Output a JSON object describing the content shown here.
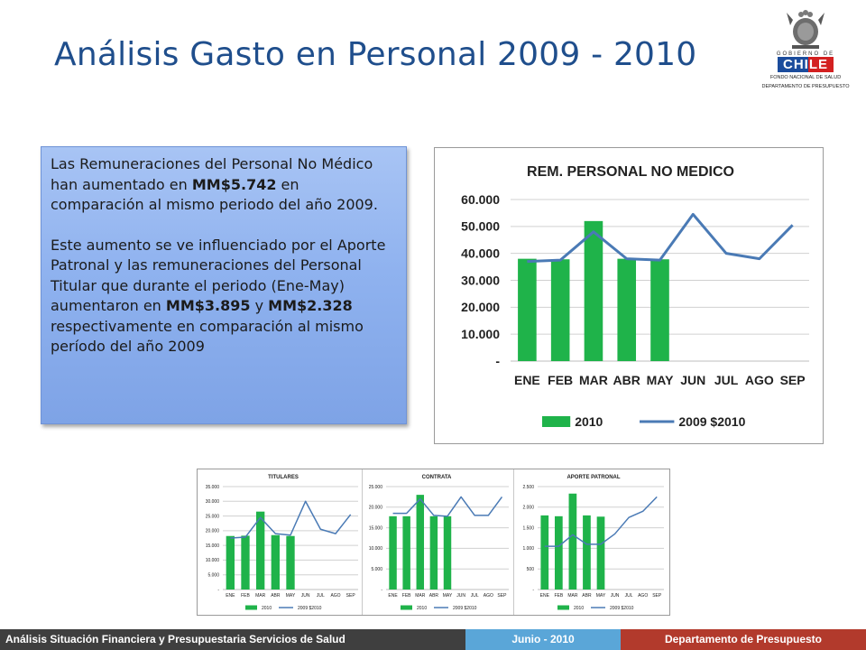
{
  "header": {
    "title": "Análisis Gasto en Personal 2009 - 2010",
    "logo_gobierno": "GOBIERNO DE",
    "logo_chile": "CHILE",
    "logo_line1": "FONDO NACIONAL DE SALUD",
    "logo_line2": "DEPARTAMENTO DE PRESUPUESTO"
  },
  "infobox": {
    "p1_a": "Las Remuneraciones del Personal No Médico han aumentado en ",
    "p1_b": "MM$5.742",
    "p1_c": " en comparación al mismo periodo del año 2009.",
    "p2_a": "Este aumento se ve influenciado por el Aporte Patronal y las remuneraciones del Personal Titular que durante el periodo (Ene-May) aumentaron en ",
    "p2_b": "MM$3.895",
    "p2_c": " y ",
    "p2_d": "MM$2.328",
    "p2_e": " respectivamente en comparación al mismo período del año 2009"
  },
  "colors": {
    "bar": "#1fb34a",
    "line": "#4a7ab5",
    "grid": "#d0d0d0"
  },
  "chart_data": [
    {
      "type": "bar",
      "title": "REM. PERSONAL NO MEDICO",
      "categories": [
        "ENE",
        "FEB",
        "MAR",
        "ABR",
        "MAY",
        "JUN",
        "JUL",
        "AGO",
        "SEP"
      ],
      "yticks": [
        "-",
        "10.000",
        "20.000",
        "30.000",
        "40.000",
        "50.000",
        "60.000"
      ],
      "ylim": [
        0,
        60000
      ],
      "series": [
        {
          "name": "2010",
          "kind": "bar",
          "values": [
            38000,
            37800,
            52000,
            38000,
            37800,
            null,
            null,
            null,
            null
          ]
        },
        {
          "name": "2009 $2010",
          "kind": "line",
          "values": [
            37000,
            37500,
            48000,
            38000,
            37500,
            54500,
            40000,
            38000,
            50500
          ]
        }
      ],
      "legend": "bottom"
    },
    {
      "type": "bar",
      "title": "TITULARES",
      "categories": [
        "ENE",
        "FEB",
        "MAR",
        "ABR",
        "MAY",
        "JUN",
        "JUL",
        "AGO",
        "SEP"
      ],
      "yticks": [
        "-",
        "5.000",
        "10.000",
        "15.000",
        "20.000",
        "25.000",
        "30.000",
        "35.000"
      ],
      "ylim": [
        0,
        35000
      ],
      "series": [
        {
          "name": "2010",
          "kind": "bar",
          "values": [
            18200,
            18300,
            26500,
            18500,
            18200,
            null,
            null,
            null,
            null
          ]
        },
        {
          "name": "2009 $2010",
          "kind": "line",
          "values": [
            17500,
            17800,
            24500,
            19000,
            18500,
            30000,
            20500,
            19000,
            25500
          ]
        }
      ],
      "legend": "bottom"
    },
    {
      "type": "bar",
      "title": "CONTRATA",
      "categories": [
        "ENE",
        "FEB",
        "MAR",
        "ABR",
        "MAY",
        "JUN",
        "JUL",
        "AGO",
        "SEP"
      ],
      "yticks": [
        "-",
        "5.000",
        "10.000",
        "15.000",
        "20.000",
        "25.000"
      ],
      "ylim": [
        0,
        25000
      ],
      "series": [
        {
          "name": "2010",
          "kind": "bar",
          "values": [
            17800,
            17800,
            23000,
            17800,
            17800,
            null,
            null,
            null,
            null
          ]
        },
        {
          "name": "2009 $2010",
          "kind": "line",
          "values": [
            18500,
            18500,
            22000,
            18000,
            17800,
            22500,
            18000,
            18000,
            22500
          ]
        }
      ],
      "legend": "bottom"
    },
    {
      "type": "bar",
      "title": "APORTE PATRONAL",
      "categories": [
        "ENE",
        "FEB",
        "MAR",
        "ABR",
        "MAY",
        "JUN",
        "JUL",
        "AGO",
        "SEP"
      ],
      "yticks": [
        "-",
        "500",
        "1.000",
        "1.500",
        "2.000",
        "2.500"
      ],
      "ylim": [
        0,
        2500
      ],
      "series": [
        {
          "name": "2010",
          "kind": "bar",
          "values": [
            1800,
            1780,
            2330,
            1800,
            1770,
            null,
            null,
            null,
            null
          ]
        },
        {
          "name": "2009 $2010",
          "kind": "line",
          "values": [
            1050,
            1050,
            1330,
            1100,
            1100,
            1350,
            1750,
            1900,
            2250
          ]
        }
      ],
      "legend": "bottom"
    }
  ],
  "footer": {
    "left": "Análisis Situación Financiera y Presupuestaria Servicios de Salud",
    "center": "Junio - 2010",
    "right": "Departamento de Presupuesto"
  }
}
